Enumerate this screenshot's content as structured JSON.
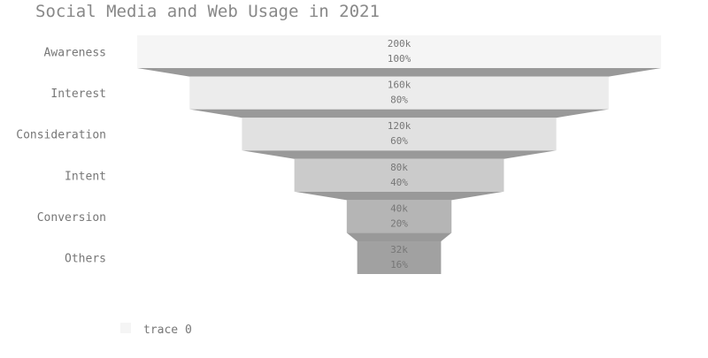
{
  "chart_data": {
    "type": "funnel",
    "title": "Social Media and Web Usage in 2021",
    "categories": [
      "Awareness",
      "Interest",
      "Consideration",
      "Intent",
      "Conversion",
      "Others"
    ],
    "values": [
      200000,
      160000,
      120000,
      80000,
      40000,
      32000
    ],
    "value_labels": [
      "200k",
      "160k",
      "120k",
      "80k",
      "40k",
      "32k"
    ],
    "percent_labels": [
      "100%",
      "80%",
      "60%",
      "40%",
      "20%",
      "16%"
    ],
    "bar_colors": [
      "#f5f5f5",
      "#ececec",
      "#e1e1e1",
      "#cbcbcb",
      "#b5b5b5",
      "#a1a1a1"
    ],
    "connector_color": "#999999",
    "legend": {
      "entries": [
        "trace 0"
      ],
      "placement": "bottom-left"
    }
  }
}
